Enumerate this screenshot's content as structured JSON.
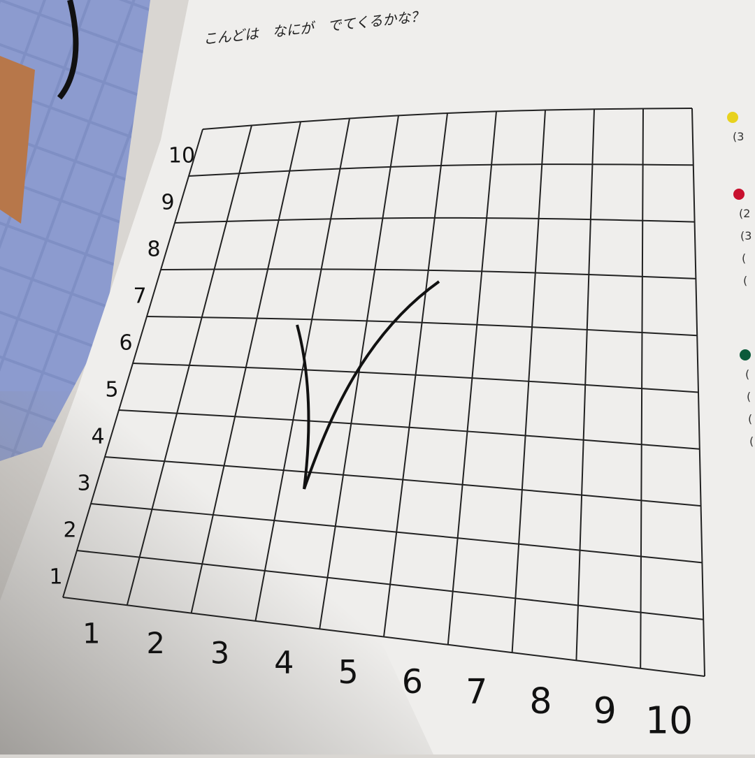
{
  "page": {
    "question": "こんどは　なにが　でてくるかな？",
    "grid": {
      "x_labels": [
        "1",
        "2",
        "3",
        "4",
        "5",
        "6",
        "7",
        "8",
        "9",
        "10"
      ],
      "y_labels": [
        "1",
        "2",
        "3",
        "4",
        "5",
        "6",
        "7",
        "8",
        "9",
        "10"
      ]
    },
    "legend": [
      {
        "color": "#e8d21e",
        "lines": [
          "(3"
        ]
      },
      {
        "color": "#c8102e",
        "lines": [
          "(2",
          "(3",
          "(",
          "("
        ]
      },
      {
        "color": "#0b5a3a",
        "lines": [
          "(",
          "(",
          "(",
          "("
        ]
      }
    ]
  }
}
